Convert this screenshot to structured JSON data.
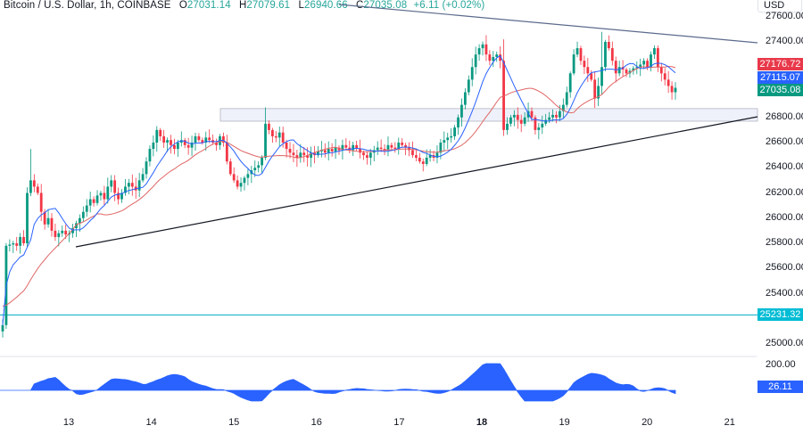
{
  "header": {
    "symbol": "Bitcoin / U.S. Dollar, 1h, COINBASE",
    "open_label": "O",
    "open": "27031.14",
    "high_label": "H",
    "high": "27079.61",
    "low_label": "L",
    "low": "26940.66",
    "close_label": "C",
    "close": "27035.08",
    "change": "+6.11 (+0.02%)"
  },
  "price_axis": {
    "currency": "USD",
    "ticks": [
      "27600.00",
      "27400.00",
      "26800.00",
      "26600.00",
      "26400.00",
      "26200.00",
      "26000.00",
      "25800.00",
      "25600.00",
      "25400.00",
      "25000.00"
    ],
    "tags": [
      {
        "label": "27176.72",
        "color": "#e8394a",
        "name": "ma-slow-price-tag"
      },
      {
        "label": "27115.07",
        "color": "#2962ff",
        "name": "ma-fast-price-tag"
      },
      {
        "label": "27035.08",
        "color": "#089981",
        "name": "last-price-tag"
      },
      {
        "label": "25231.32",
        "color": "#00bcd4",
        "name": "horizontal-line-price-tag"
      }
    ]
  },
  "indicator_axis": {
    "ticks": [
      "200.00"
    ],
    "value_tag": "26.11",
    "value_color": "#2962ff"
  },
  "time_axis": {
    "ticks": [
      "13",
      "14",
      "15",
      "16",
      "17",
      "18",
      "19",
      "20",
      "21"
    ],
    "bold": [
      "18"
    ]
  },
  "colors": {
    "up": "#089981",
    "down": "#f23645",
    "ma_fast": "#2962ff",
    "ma_slow": "#e06666",
    "trendline": "#131722",
    "upper_trendline": "#5b6b8c",
    "horizontal_line": "#00acc1",
    "zone_fill": "#eef1fa",
    "zone_border": "#b2b5be",
    "indicator_fill": "#2962ff"
  },
  "chart_data": {
    "type": "candlestick",
    "title": "Bitcoin / U.S. Dollar, 1h, COINBASE",
    "ylabel": "USD",
    "ylim": [
      24950,
      27650
    ],
    "x_day_labels": [
      "13",
      "14",
      "15",
      "16",
      "17",
      "18",
      "19",
      "20",
      "21"
    ],
    "last": {
      "open": 27031.14,
      "high": 27079.61,
      "low": 26940.66,
      "close": 27035.08,
      "change": 6.11,
      "change_pct": 0.02
    },
    "moving_averages": [
      {
        "name": "fast MA",
        "last": 27115.07,
        "color": "#2962ff"
      },
      {
        "name": "slow MA",
        "last": 27176.72,
        "color": "#e06666"
      }
    ],
    "horizontal_line": 25231.32,
    "resistance_zone": [
      26770,
      26870
    ],
    "ascending_trendline": {
      "from": {
        "day": "13",
        "price": 25780
      },
      "to": {
        "day": "21",
        "price": 26790
      }
    },
    "descending_trendline": {
      "from": {
        "day": "12.4",
        "price": 27820
      },
      "to": {
        "day": "21",
        "price": 27390
      }
    },
    "closes": [
      25150,
      25780,
      25790,
      25800,
      25780,
      25850,
      25800,
      26200,
      26300,
      26250,
      26200,
      26050,
      25950,
      26000,
      25900,
      25850,
      25880,
      25900,
      25870,
      25880,
      25920,
      25960,
      26000,
      26050,
      26100,
      26150,
      26120,
      26180,
      26200,
      26150,
      26250,
      26300,
      26200,
      26150,
      26200,
      26250,
      26280,
      26250,
      26220,
      26300,
      26350,
      26450,
      26550,
      26600,
      26700,
      26650,
      26600,
      26620,
      26580,
      26550,
      26600,
      26620,
      26580,
      26560,
      26600,
      26650,
      26620,
      26600,
      26640,
      26620,
      26600,
      26580,
      26650,
      26600,
      26450,
      26350,
      26300,
      26250,
      26280,
      26320,
      26350,
      26380,
      26400,
      26420,
      26480,
      26750,
      26700,
      26650,
      26640,
      26680,
      26600,
      26550,
      26520,
      26500,
      26480,
      26520,
      26500,
      26480,
      26520,
      26500,
      26530,
      26540,
      26520,
      26550,
      26530,
      26560,
      26540,
      26580,
      26560,
      26540,
      26580,
      26550,
      26520,
      26500,
      26480,
      26520,
      26540,
      26560,
      26550,
      26540,
      26580,
      26560,
      26550,
      26600,
      26580,
      26560,
      26540,
      26500,
      26480,
      26450,
      26430,
      26480,
      26500,
      26480,
      26520,
      26600,
      26620,
      26640,
      26650,
      26720,
      26800,
      26900,
      27000,
      27100,
      27200,
      27300,
      27350,
      27380,
      27300,
      27250,
      27280,
      27300,
      27250,
      26700,
      26750,
      26800,
      26820,
      26780,
      26750,
      26800,
      26850,
      26800,
      26700,
      26720,
      26750,
      26780,
      26800,
      26820,
      26800,
      26850,
      26900,
      27000,
      27150,
      27300,
      27350,
      27250,
      27200,
      27150,
      27100,
      26950,
      27050,
      27200,
      27400,
      27350,
      27250,
      27150,
      27200,
      27180,
      27150,
      27170,
      27190,
      27200,
      27220,
      27250,
      27200,
      27300,
      27350,
      27200,
      27150,
      27100,
      27050,
      27000,
      27035
    ],
    "indicator": {
      "name": "oscillator",
      "last": 26.11,
      "tick": 200
    }
  }
}
